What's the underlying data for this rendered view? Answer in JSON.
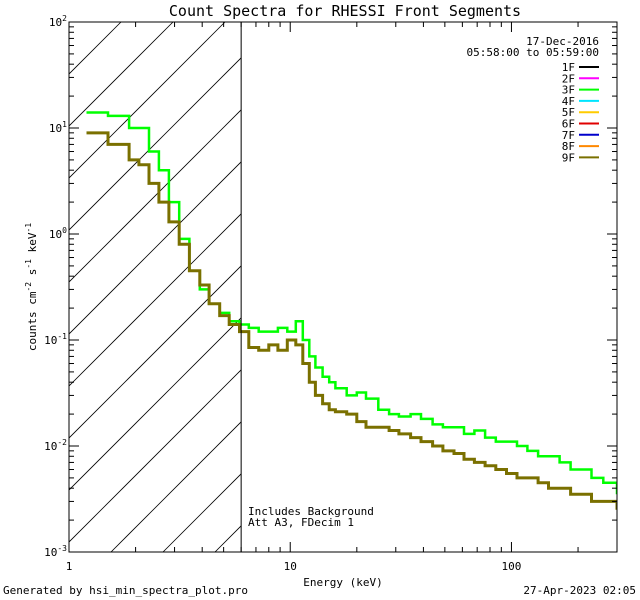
{
  "chart_data": {
    "type": "line",
    "title": "Count Spectra for RHESSI Front Segments",
    "xlabel": "Energy (keV)",
    "ylabel_parts": {
      "pre": "counts cm",
      "exp1": "-2",
      "mid1": " s",
      "exp2": "-1",
      "mid2": " keV",
      "exp3": "-1"
    },
    "xscale": "log",
    "yscale": "log",
    "xlim": [
      1,
      300
    ],
    "ylim": [
      0.001,
      100
    ],
    "x_tick_labels": [
      "1",
      "10",
      "100"
    ],
    "x_tick_values": [
      1,
      10,
      100
    ],
    "y_tick_labels": [
      {
        "base": "10",
        "exp": "-3"
      },
      {
        "base": "10",
        "exp": "-2"
      },
      {
        "base": "10",
        "exp": "-1"
      },
      {
        "base": "10",
        "exp": "0"
      },
      {
        "base": "10",
        "exp": "1"
      },
      {
        "base": "10",
        "exp": "2"
      }
    ],
    "y_tick_values": [
      0.001,
      0.01,
      0.1,
      1,
      10,
      100
    ],
    "hatched_region_x": [
      1,
      6
    ],
    "vertical_line_x": 6,
    "date": "17-Dec-2016",
    "time_range": "05:58:00 to 05:59:00",
    "legend": [
      {
        "name": "1F",
        "color": "#000000"
      },
      {
        "name": "2F",
        "color": "#ff00ff"
      },
      {
        "name": "3F",
        "color": "#00ff00"
      },
      {
        "name": "4F",
        "color": "#00e5ff"
      },
      {
        "name": "5F",
        "color": "#ffcc00"
      },
      {
        "name": "6F",
        "color": "#e00000"
      },
      {
        "name": "7F",
        "color": "#0000cc"
      },
      {
        "name": "8F",
        "color": "#ff8800"
      },
      {
        "name": "9F",
        "color": "#7a7000"
      }
    ],
    "annotations": [
      "Includes Background",
      "Att A3, FDecim 1"
    ],
    "series": [
      {
        "name": "3F",
        "color": "#00ff00",
        "x": [
          1.2,
          1.33,
          1.5,
          1.67,
          1.87,
          2.07,
          2.3,
          2.55,
          2.83,
          3.15,
          3.5,
          3.9,
          4.3,
          4.8,
          5.3,
          5.9,
          6.5,
          7.2,
          8.0,
          8.8,
          9.7,
          10.6,
          11.4,
          12.2,
          13,
          14,
          15,
          16,
          18,
          20,
          22,
          25,
          28,
          31,
          35,
          39,
          44,
          49,
          55,
          61,
          68,
          76,
          85,
          95,
          106,
          118,
          132,
          147,
          165,
          185,
          207,
          230,
          260,
          300
        ],
        "y": [
          14.0,
          14.0,
          13.0,
          13.0,
          10.0,
          10.0,
          6.0,
          4.0,
          2.0,
          0.9,
          0.45,
          0.3,
          0.22,
          0.18,
          0.15,
          0.14,
          0.13,
          0.12,
          0.12,
          0.13,
          0.12,
          0.15,
          0.1,
          0.07,
          0.055,
          0.045,
          0.04,
          0.035,
          0.03,
          0.032,
          0.028,
          0.022,
          0.02,
          0.019,
          0.02,
          0.018,
          0.016,
          0.015,
          0.015,
          0.013,
          0.014,
          0.012,
          0.011,
          0.011,
          0.01,
          0.009,
          0.008,
          0.008,
          0.007,
          0.006,
          0.006,
          0.005,
          0.0045,
          0.0035
        ]
      },
      {
        "name": "9F",
        "color": "#7a7000",
        "x": [
          1.2,
          1.33,
          1.5,
          1.67,
          1.87,
          2.07,
          2.3,
          2.55,
          2.83,
          3.15,
          3.5,
          3.9,
          4.3,
          4.8,
          5.3,
          5.9,
          6.5,
          7.2,
          8.0,
          8.8,
          9.7,
          10.6,
          11.4,
          12.2,
          13,
          14,
          15,
          16,
          18,
          20,
          22,
          25,
          28,
          31,
          35,
          39,
          44,
          49,
          55,
          61,
          68,
          76,
          85,
          95,
          106,
          118,
          132,
          147,
          165,
          185,
          207,
          230,
          260,
          300
        ],
        "y": [
          9.0,
          9.0,
          7.0,
          7.0,
          5.0,
          4.5,
          3.0,
          2.0,
          1.3,
          0.8,
          0.45,
          0.33,
          0.22,
          0.17,
          0.14,
          0.12,
          0.085,
          0.08,
          0.09,
          0.08,
          0.1,
          0.09,
          0.06,
          0.04,
          0.03,
          0.025,
          0.022,
          0.021,
          0.02,
          0.017,
          0.015,
          0.015,
          0.014,
          0.013,
          0.012,
          0.011,
          0.01,
          0.009,
          0.0085,
          0.0075,
          0.007,
          0.0065,
          0.006,
          0.0055,
          0.005,
          0.005,
          0.0045,
          0.004,
          0.004,
          0.0035,
          0.0035,
          0.003,
          0.003,
          0.0025
        ]
      }
    ]
  },
  "footer": {
    "generated": "Generated by hsi_min_spectra_plot.pro",
    "timestamp": "27-Apr-2023 02:05"
  }
}
